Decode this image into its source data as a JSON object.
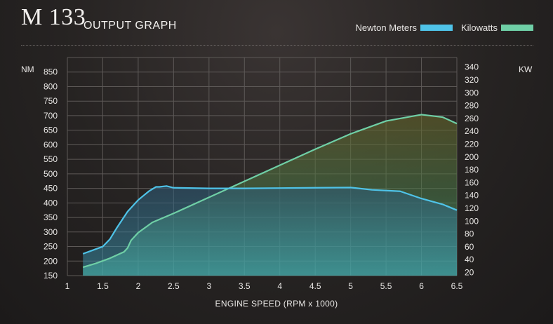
{
  "header": {
    "model": "M 133",
    "subtitle": "OUTPUT GRAPH"
  },
  "legend": [
    {
      "label": "Newton Meters",
      "color": "#4fc3e8"
    },
    {
      "label": "Kilowatts",
      "color": "#6fcfa6"
    }
  ],
  "axes": {
    "left_unit": "NM",
    "right_unit": "KW",
    "x_title": "ENGINE SPEED (RPM x 1000)"
  },
  "chart_data": {
    "type": "area",
    "xlabel": "ENGINE SPEED (RPM x 1000)",
    "ylabel": "NM",
    "y2label": "KW",
    "xlim": [
      1,
      6.5
    ],
    "ylim": [
      150,
      900
    ],
    "y2lim": [
      15,
      355
    ],
    "x_ticks": [
      "1",
      "1.5",
      "2",
      "2.5",
      "3",
      "3.5",
      "4",
      "4.5",
      "5",
      "5.5",
      "6",
      "6.5"
    ],
    "y_ticks": [
      "150",
      "200",
      "250",
      "300",
      "350",
      "400",
      "450",
      "500",
      "550",
      "600",
      "650",
      "700",
      "750",
      "800",
      "850"
    ],
    "y2_ticks": [
      "20",
      "40",
      "60",
      "80",
      "100",
      "120",
      "140",
      "160",
      "180",
      "200",
      "220",
      "240",
      "260",
      "280",
      "300",
      "320",
      "340"
    ],
    "grid": true,
    "legend_position": "top-right",
    "series": [
      {
        "name": "Newton Meters",
        "axis": "left",
        "color": "#4fc3e8",
        "x": [
          1.22,
          1.5,
          1.6,
          1.7,
          1.85,
          2.0,
          2.15,
          2.25,
          2.3,
          2.4,
          2.5,
          3.0,
          3.5,
          4.0,
          4.5,
          5.0,
          5.3,
          5.7,
          6.0,
          6.3,
          6.5
        ],
        "y": [
          225,
          250,
          275,
          315,
          370,
          410,
          440,
          455,
          455,
          458,
          452,
          450,
          450,
          451,
          452,
          453,
          445,
          440,
          415,
          395,
          375
        ]
      },
      {
        "name": "Kilowatts",
        "axis": "right",
        "color": "#6fcfa6",
        "x": [
          1.22,
          1.4,
          1.6,
          1.8,
          1.85,
          1.9,
          2.0,
          2.2,
          2.5,
          3.0,
          3.5,
          4.0,
          4.5,
          5.0,
          5.5,
          6.0,
          6.3,
          6.5
        ],
        "y": [
          28,
          34,
          42,
          52,
          58,
          70,
          82,
          98,
          112,
          137,
          162,
          187,
          212,
          236,
          256,
          266,
          262,
          252
        ]
      }
    ]
  }
}
